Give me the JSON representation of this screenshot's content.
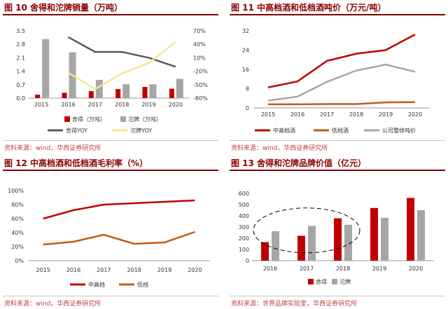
{
  "colors": {
    "red": "#c00000",
    "gray": "#a6a6a6",
    "dark": "#595959",
    "yellow": "#f5e88b",
    "orange": "#c55a11",
    "accent": "#8b0000"
  },
  "chart_data": [
    {
      "type": "bar",
      "title": "图 10 舍得和沱牌销量（万吨）",
      "source": "资料来源：wind，华西证券研究所",
      "categories": [
        "2015",
        "2016",
        "2017",
        "2018",
        "2019",
        "2020"
      ],
      "ylim": [
        0,
        3.5
      ],
      "yticks": [
        "0.0",
        "0.7",
        "1.4",
        "2.1",
        "2.8",
        "3.5"
      ],
      "y2lim": [
        -80,
        70
      ],
      "y2ticks": [
        "-80%",
        "-50%",
        "-20%",
        "10%",
        "40%",
        "70%"
      ],
      "series": [
        {
          "name": "舍得（万吨）",
          "type": "bar",
          "values": [
            0.18,
            0.28,
            0.36,
            0.47,
            0.58,
            0.49
          ]
        },
        {
          "name": "沱牌（万吨）",
          "type": "bar",
          "values": [
            3.07,
            2.38,
            0.95,
            0.72,
            0.72,
            1.0
          ]
        },
        {
          "name": "舍得YOY",
          "type": "line",
          "axis": "right",
          "values": [
            null,
            56,
            23,
            23,
            10,
            -10
          ]
        },
        {
          "name": "沱牌YOY",
          "type": "line",
          "axis": "right",
          "values": [
            null,
            -23,
            -60,
            -25,
            -2,
            45
          ]
        }
      ]
    },
    {
      "type": "line",
      "title": "图 11 中高档酒和低档酒吨价（万元/吨）",
      "source": "资料来源：wind，华西证券研究所",
      "categories": [
        "2015",
        "2016",
        "2017",
        "2018",
        "2019",
        "2020"
      ],
      "ylim": [
        0,
        32
      ],
      "yticks": [
        "0",
        "8",
        "16",
        "24",
        "32"
      ],
      "series": [
        {
          "name": "中高档酒",
          "values": [
            8.5,
            11,
            19.5,
            22.5,
            24,
            30.5
          ]
        },
        {
          "name": "低档酒",
          "values": [
            1.5,
            1.5,
            1.6,
            1.6,
            2.3,
            2.4
          ]
        },
        {
          "name": "公司整体吨价",
          "values": [
            3,
            4.7,
            10.8,
            15.5,
            18,
            15
          ]
        }
      ]
    },
    {
      "type": "line",
      "title": "图 12 中高档酒和低档酒毛利率（%）",
      "source": "资料来源：wind，华西证券研究所",
      "categories": [
        "2015",
        "2016",
        "2017",
        "2018",
        "2019",
        "2020"
      ],
      "ylim": [
        0,
        100
      ],
      "yticks": [
        "0%",
        "20%",
        "40%",
        "60%",
        "80%",
        "100%"
      ],
      "series": [
        {
          "name": "中高档",
          "values": [
            60,
            72,
            80,
            82,
            84,
            86
          ]
        },
        {
          "name": "低档",
          "values": [
            23,
            27,
            37,
            24,
            26,
            41
          ]
        }
      ]
    },
    {
      "type": "bar",
      "title": "图 13 舍得和沱牌品牌价值（亿元）",
      "source": "资料来源：世界品牌实验室，华西证券研究所",
      "categories": [
        "2016",
        "2017",
        "2018",
        "2019",
        "2020"
      ],
      "ylim": [
        0,
        600
      ],
      "yticks": [
        "0",
        "100",
        "200",
        "300",
        "400",
        "500",
        "600"
      ],
      "series": [
        {
          "name": "舍得",
          "values": [
            165,
            222,
            378,
            470,
            560
          ]
        },
        {
          "name": "沱牌",
          "values": [
            262,
            310,
            320,
            382,
            450
          ]
        }
      ]
    }
  ]
}
